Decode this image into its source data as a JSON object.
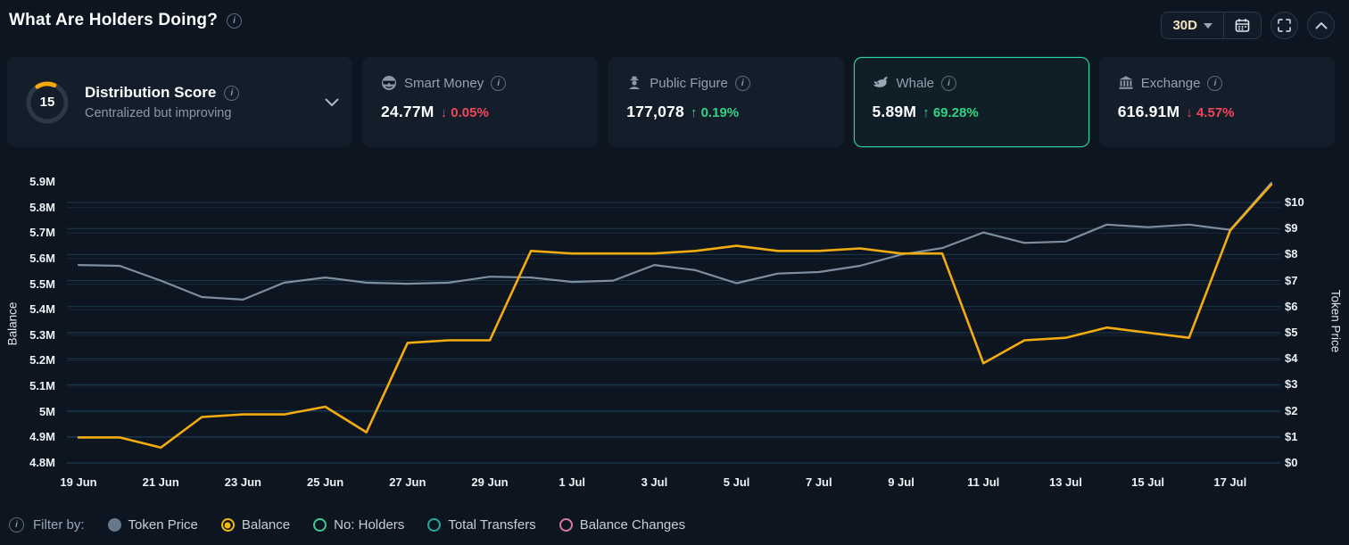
{
  "header": {
    "title": "What Are Holders Doing?",
    "period_selector": "30D"
  },
  "cards": {
    "distribution": {
      "score": "15",
      "title": "Distribution Score",
      "subtitle": "Centralized but improving"
    },
    "stats": [
      {
        "id": "smart-money",
        "label": "Smart Money",
        "value": "24.77M",
        "arrow": "↓",
        "change": "0.05%",
        "direction": "down",
        "selected": false
      },
      {
        "id": "public-figure",
        "label": "Public Figure",
        "value": "177,078",
        "arrow": "↑",
        "change": "0.19%",
        "direction": "up",
        "selected": false
      },
      {
        "id": "whale",
        "label": "Whale",
        "value": "5.89M",
        "arrow": "↑",
        "change": "69.28%",
        "direction": "up",
        "selected": true
      },
      {
        "id": "exchange",
        "label": "Exchange",
        "value": "616.91M",
        "arrow": "↓",
        "change": "4.57%",
        "direction": "down",
        "selected": false
      }
    ]
  },
  "chart_data": {
    "type": "line",
    "x": [
      "19 Jun",
      "20 Jun",
      "21 Jun",
      "22 Jun",
      "23 Jun",
      "24 Jun",
      "25 Jun",
      "26 Jun",
      "27 Jun",
      "28 Jun",
      "29 Jun",
      "30 Jun",
      "1 Jul",
      "2 Jul",
      "3 Jul",
      "4 Jul",
      "5 Jul",
      "6 Jul",
      "7 Jul",
      "8 Jul",
      "9 Jul",
      "10 Jul",
      "11 Jul",
      "12 Jul",
      "13 Jul",
      "14 Jul",
      "15 Jul",
      "16 Jul",
      "17 Jul",
      "18 Jul"
    ],
    "x_tick_labels": [
      "19 Jun",
      "21 Jun",
      "23 Jun",
      "25 Jun",
      "27 Jun",
      "29 Jun",
      "1 Jul",
      "3 Jul",
      "5 Jul",
      "7 Jul",
      "9 Jul",
      "11 Jul",
      "13 Jul",
      "15 Jul",
      "17 Jul"
    ],
    "series": [
      {
        "name": "Token Price",
        "axis": "right",
        "color": "#8695a6",
        "unit": "USD",
        "values": [
          7.6,
          7.57,
          7.0,
          6.37,
          6.27,
          6.92,
          7.12,
          6.92,
          6.88,
          6.92,
          7.15,
          7.12,
          6.95,
          7.0,
          7.6,
          7.4,
          6.9,
          7.27,
          7.33,
          7.57,
          8.0,
          8.25,
          8.85,
          8.45,
          8.5,
          9.15,
          9.05,
          9.15,
          8.95,
          10.75
        ]
      },
      {
        "name": "Balance",
        "axis": "left",
        "color": "#f3ac0e",
        "unit": "M tokens",
        "values": [
          4.9,
          4.9,
          4.86,
          4.98,
          4.99,
          4.99,
          5.02,
          4.92,
          5.27,
          5.28,
          5.28,
          5.63,
          5.62,
          5.62,
          5.62,
          5.63,
          5.65,
          5.63,
          5.63,
          5.64,
          5.62,
          5.62,
          5.19,
          5.28,
          5.29,
          5.33,
          5.31,
          5.29,
          5.71,
          5.89
        ]
      }
    ],
    "left_axis": {
      "label": "Balance",
      "ticks": [
        "5.9M",
        "5.8M",
        "5.7M",
        "5.6M",
        "5.5M",
        "5.4M",
        "5.3M",
        "5.2M",
        "5.1M",
        "5M",
        "4.9M",
        "4.8M"
      ],
      "tick_values": [
        5.9,
        5.8,
        5.7,
        5.6,
        5.5,
        5.4,
        5.3,
        5.2,
        5.1,
        5.0,
        4.9,
        4.8
      ],
      "range": [
        4.8,
        5.9
      ]
    },
    "right_axis": {
      "label": "Token Price",
      "ticks": [
        "$10",
        "$9",
        "$8",
        "$7",
        "$6",
        "$5",
        "$4",
        "$3",
        "$2",
        "$1",
        "$0"
      ],
      "tick_values": [
        10,
        9,
        8,
        7,
        6,
        5,
        4,
        3,
        2,
        1,
        0
      ],
      "range": [
        0,
        10
      ]
    },
    "grid": true,
    "legend_position": "bottom"
  },
  "legend": {
    "filter_label": "Filter by:",
    "items": [
      {
        "label": "Token Price",
        "color": "#66788c",
        "style": "filled"
      },
      {
        "label": "Balance",
        "color": "#f0b90b",
        "style": "radio-selected"
      },
      {
        "label": "No: Holders",
        "color": "#41c98e",
        "style": "ring"
      },
      {
        "label": "Total Transfers",
        "color": "#2aa79b",
        "style": "ring"
      },
      {
        "label": "Balance Changes",
        "color": "#d678a8",
        "style": "ring"
      }
    ]
  },
  "colors": {
    "up": "#2fd483",
    "down": "#f0465a",
    "accent_yellow": "#f3ac0e",
    "line_gray": "#8695a6",
    "selected_border": "#2bd3a0",
    "grid_price": "#1d4258",
    "grid_balance": "#16293c"
  }
}
